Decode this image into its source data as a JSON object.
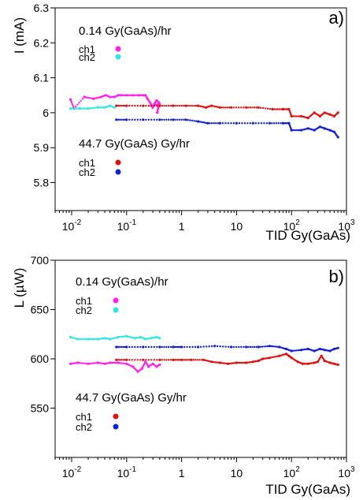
{
  "chart_data": [
    {
      "type": "scatter",
      "panel_label": "a)",
      "ylabel": "I (mA)",
      "xlabel": "TID Gy(GaAs)",
      "x_scale": "log",
      "xlim": [
        0.005,
        1000
      ],
      "ylim": [
        5.72,
        6.3
      ],
      "yticks": [
        "6.3",
        "6.2",
        "6.1",
        "6",
        "5.9",
        "5.8"
      ],
      "ytick_values": [
        6.3,
        6.2,
        6.1,
        6.0,
        5.9,
        5.8
      ],
      "xticks": [
        {
          "base": "10",
          "exp": "-2",
          "value": 0.01
        },
        {
          "base": "10",
          "exp": "-1",
          "value": 0.1
        },
        {
          "base": "1",
          "exp": "",
          "value": 1
        },
        {
          "base": "10",
          "exp": "",
          "value": 10
        },
        {
          "base": "10",
          "exp": "2",
          "value": 100
        },
        {
          "base": "10",
          "exp": "3",
          "value": 1000
        }
      ],
      "legend_groups": [
        {
          "title": "0.14 Gy(GaAs)/hr",
          "entries": [
            {
              "label": "ch1",
              "color": "#ff22ee"
            },
            {
              "label": "ch2",
              "color": "#33e6e6"
            }
          ]
        },
        {
          "title": "44.7 Gy(GaAs) Gy/hr",
          "entries": [
            {
              "label": "ch1",
              "color": "#e01010"
            },
            {
              "label": "ch2",
              "color": "#1020d0"
            }
          ]
        }
      ],
      "series": [
        {
          "color": "#ff22ee",
          "points": [
            [
              0.0095,
              6.038
            ],
            [
              0.011,
              6.012
            ],
            [
              0.017,
              6.045
            ],
            [
              0.025,
              6.04
            ],
            [
              0.034,
              6.045
            ],
            [
              0.042,
              6.05
            ],
            [
              0.05,
              6.045
            ],
            [
              0.06,
              6.045
            ],
            [
              0.07,
              6.05
            ],
            [
              0.08,
              6.05
            ],
            [
              0.1,
              6.05
            ],
            [
              0.13,
              6.05
            ],
            [
              0.17,
              6.05
            ],
            [
              0.2,
              6.05
            ],
            [
              0.22,
              6.05
            ],
            [
              0.24,
              6.04
            ],
            [
              0.27,
              6.028
            ],
            [
              0.3,
              6.015
            ],
            [
              0.32,
              6.025
            ],
            [
              0.35,
              6.035
            ],
            [
              0.38,
              6.03
            ],
            [
              0.36,
              6.0
            ],
            [
              0.4,
              6.025
            ],
            [
              0.28,
              6.02
            ]
          ]
        },
        {
          "color": "#33e6e6",
          "points": [
            [
              0.0095,
              6.012
            ],
            [
              0.014,
              6.012
            ],
            [
              0.02,
              6.012
            ],
            [
              0.03,
              6.015
            ],
            [
              0.04,
              6.015
            ],
            [
              0.05,
              6.02
            ],
            [
              0.06,
              6.015
            ]
          ]
        },
        {
          "color": "#e01010",
          "points": [
            [
              0.065,
              6.02
            ],
            [
              0.1,
              6.02
            ],
            [
              0.2,
              6.02
            ],
            [
              0.4,
              6.02
            ],
            [
              0.7,
              6.02
            ],
            [
              1.2,
              6.02
            ],
            [
              2.0,
              6.02
            ],
            [
              2.8,
              6.015
            ],
            [
              3.5,
              6.02
            ],
            [
              5,
              6.015
            ],
            [
              8,
              6.015
            ],
            [
              15,
              6.015
            ],
            [
              25,
              6.015
            ],
            [
              45,
              6.01
            ],
            [
              70,
              6.01
            ],
            [
              90,
              6.01
            ],
            [
              100,
              5.99
            ],
            [
              150,
              5.99
            ],
            [
              200,
              5.985
            ],
            [
              260,
              6.0
            ],
            [
              330,
              5.99
            ],
            [
              400,
              6.0
            ],
            [
              500,
              5.995
            ],
            [
              600,
              5.99
            ],
            [
              700,
              6.0
            ]
          ]
        },
        {
          "color": "#1020d0",
          "points": [
            [
              0.065,
              5.98
            ],
            [
              0.1,
              5.98
            ],
            [
              0.2,
              5.98
            ],
            [
              0.4,
              5.98
            ],
            [
              0.7,
              5.98
            ],
            [
              1.2,
              5.98
            ],
            [
              2.0,
              5.975
            ],
            [
              3,
              5.97
            ],
            [
              5,
              5.97
            ],
            [
              10,
              5.97
            ],
            [
              20,
              5.97
            ],
            [
              40,
              5.97
            ],
            [
              70,
              5.97
            ],
            [
              90,
              5.97
            ],
            [
              100,
              5.95
            ],
            [
              150,
              5.95
            ],
            [
              200,
              5.955
            ],
            [
              260,
              5.95
            ],
            [
              330,
              5.96
            ],
            [
              400,
              5.955
            ],
            [
              500,
              5.95
            ],
            [
              600,
              5.945
            ],
            [
              700,
              5.93
            ]
          ]
        }
      ]
    },
    {
      "type": "scatter",
      "panel_label": "b)",
      "ylabel": "L (µW)",
      "xlabel": "TID Gy(GaAs)",
      "x_scale": "log",
      "xlim": [
        0.005,
        1000
      ],
      "ylim": [
        500,
        700
      ],
      "yticks": [
        "700",
        "650",
        "600",
        "550"
      ],
      "ytick_values": [
        700,
        650,
        600,
        550
      ],
      "xticks": [
        {
          "base": "10",
          "exp": "-2",
          "value": 0.01
        },
        {
          "base": "10",
          "exp": "-1",
          "value": 0.1
        },
        {
          "base": "1",
          "exp": "",
          "value": 1
        },
        {
          "base": "10",
          "exp": "",
          "value": 10
        },
        {
          "base": "10",
          "exp": "2",
          "value": 100
        },
        {
          "base": "10",
          "exp": "3",
          "value": 1000
        }
      ],
      "legend_groups": [
        {
          "title": "0.14 Gy(GaAs)/hr",
          "entries": [
            {
              "label": "ch1",
              "color": "#ff22ee"
            },
            {
              "label": "ch2",
              "color": "#33e6e6"
            }
          ]
        },
        {
          "title": "44.7 Gy(GaAs) Gy/hr",
          "entries": [
            {
              "label": "ch1",
              "color": "#e01010"
            },
            {
              "label": "ch2",
              "color": "#1020d0"
            }
          ]
        }
      ],
      "series": [
        {
          "color": "#33e6e6",
          "points": [
            [
              0.0095,
              622
            ],
            [
              0.013,
              620
            ],
            [
              0.02,
              620
            ],
            [
              0.03,
              620
            ],
            [
              0.04,
              621
            ],
            [
              0.05,
              620
            ],
            [
              0.07,
              622
            ],
            [
              0.1,
              623
            ],
            [
              0.14,
              621
            ],
            [
              0.18,
              622
            ],
            [
              0.22,
              620
            ],
            [
              0.28,
              621
            ],
            [
              0.35,
              622
            ],
            [
              0.4,
              621
            ]
          ]
        },
        {
          "color": "#ff22ee",
          "points": [
            [
              0.0095,
              595
            ],
            [
              0.013,
              596
            ],
            [
              0.02,
              595
            ],
            [
              0.03,
              596
            ],
            [
              0.04,
              595
            ],
            [
              0.05,
              596
            ],
            [
              0.07,
              596
            ],
            [
              0.1,
              595
            ],
            [
              0.13,
              592
            ],
            [
              0.16,
              587
            ],
            [
              0.19,
              590
            ],
            [
              0.22,
              597
            ],
            [
              0.25,
              592
            ],
            [
              0.3,
              595
            ],
            [
              0.35,
              592
            ],
            [
              0.4,
              594
            ]
          ]
        },
        {
          "color": "#1020d0",
          "points": [
            [
              0.065,
              612
            ],
            [
              0.1,
              612
            ],
            [
              0.2,
              612
            ],
            [
              0.4,
              612
            ],
            [
              0.7,
              612
            ],
            [
              1.0,
              612
            ],
            [
              2,
              612
            ],
            [
              4,
              613
            ],
            [
              8,
              612
            ],
            [
              15,
              612
            ],
            [
              25,
              612
            ],
            [
              40,
              613
            ],
            [
              60,
              612
            ],
            [
              80,
              610
            ],
            [
              100,
              608
            ],
            [
              150,
              609
            ],
            [
              200,
              610
            ],
            [
              260,
              608
            ],
            [
              330,
              610
            ],
            [
              400,
              609
            ],
            [
              500,
              608
            ],
            [
              600,
              610
            ],
            [
              700,
              611
            ]
          ]
        },
        {
          "color": "#e01010",
          "points": [
            [
              0.065,
              599
            ],
            [
              0.1,
              599
            ],
            [
              0.2,
              599
            ],
            [
              0.4,
              599
            ],
            [
              0.7,
              599
            ],
            [
              1.0,
              599
            ],
            [
              1.5,
              599
            ],
            [
              2.5,
              599
            ],
            [
              3.5,
              597
            ],
            [
              5,
              596
            ],
            [
              7,
              595
            ],
            [
              10,
              596
            ],
            [
              15,
              596
            ],
            [
              20,
              597
            ],
            [
              25,
              598
            ],
            [
              30,
              600
            ],
            [
              40,
              601
            ],
            [
              60,
              603
            ],
            [
              80,
              605
            ],
            [
              90,
              603
            ],
            [
              100,
              601
            ],
            [
              130,
              597
            ],
            [
              160,
              595
            ],
            [
              200,
              595
            ],
            [
              260,
              596
            ],
            [
              300,
              597
            ],
            [
              350,
              603
            ],
            [
              400,
              598
            ],
            [
              500,
              596
            ],
            [
              600,
              595
            ],
            [
              700,
              594
            ]
          ]
        }
      ]
    }
  ]
}
